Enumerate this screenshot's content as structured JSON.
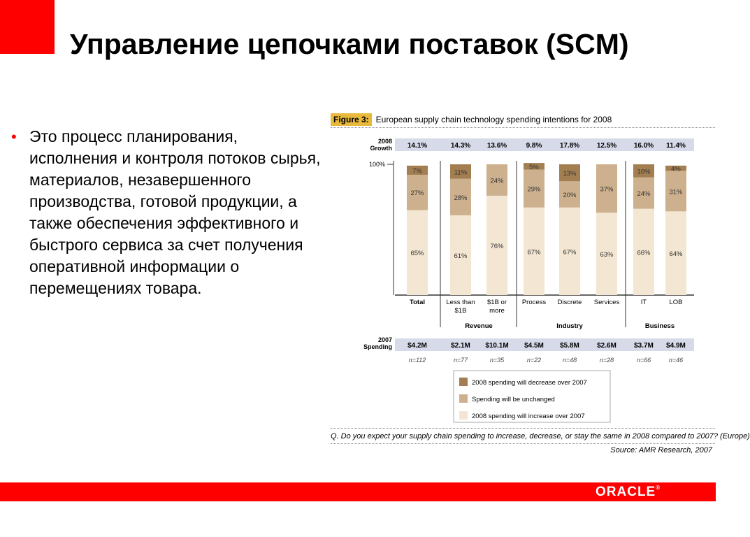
{
  "slide": {
    "title": "Управление цепочками поставок (SCM)",
    "bullet": "Это процесс планирования, исполнения и контроля потоков сырья, материалов, незавершенного производства, готовой продукции, а также обеспечения эффективного и быстрого сервиса за счет получения оперативной информации о перемещениях товара.",
    "logo_text": "ORACLE",
    "logo_mark": "®",
    "colors": {
      "accent": "#ff0000",
      "figure_tag": "#e8b93a",
      "row_band": "#d7dae8"
    }
  },
  "figure": {
    "tag": "Figure 3:",
    "caption": "European supply chain technology spending intentions for 2008",
    "question": "Q. Do you expect your supply chain spending to increase, decrease, or stay the same in 2008 compared to 2007? (Europe)",
    "source": "Source: AMR Research, 2007"
  },
  "chart_data": {
    "type": "bar",
    "stacked": true,
    "percent": true,
    "categories": [
      "Total",
      "Less than $1B",
      "$1B or more",
      "Process",
      "Discrete",
      "Services",
      "IT",
      "LOB"
    ],
    "groups": [
      {
        "name": "Revenue",
        "categories": [
          "Less than $1B",
          "$1B or more"
        ]
      },
      {
        "name": "Industry",
        "categories": [
          "Process",
          "Discrete",
          "Services"
        ]
      },
      {
        "name": "Business",
        "categories": [
          "IT",
          "LOB"
        ]
      }
    ],
    "series": [
      {
        "name": "2008 spending will increase over 2007",
        "color": "#f3e6d2",
        "values": [
          65,
          61,
          76,
          67,
          67,
          63,
          66,
          64
        ]
      },
      {
        "name": "Spending will be unchanged",
        "color": "#cdb08d",
        "values": [
          27,
          28,
          24,
          29,
          20,
          37,
          24,
          31
        ]
      },
      {
        "name": "2008 spending will decrease over 2007",
        "color": "#a37e50",
        "values": [
          7,
          11,
          null,
          5,
          13,
          null,
          10,
          4
        ]
      }
    ],
    "legend_order": [
      "2008 spending will decrease over 2007",
      "Spending will be unchanged",
      "2008 spending will increase over 2007"
    ],
    "y_tick_label": "100%",
    "ylim": [
      0,
      100
    ],
    "growth_2008": {
      "label_line1": "2008",
      "label_line2": "Growth",
      "values": [
        "14.1%",
        "14.3%",
        "13.6%",
        "9.8%",
        "17.8%",
        "12.5%",
        "16.0%",
        "11.4%"
      ]
    },
    "spending_2007": {
      "label_line1": "2007",
      "label_line2": "Spending",
      "values": [
        "$4.2M",
        "$2.1M",
        "$10.1M",
        "$4.5M",
        "$5.8M",
        "$2.6M",
        "$3.7M",
        "$4.9M"
      ]
    },
    "sample_sizes": [
      "n=112",
      "n=77",
      "n=35",
      "n=22",
      "n=48",
      "n=28",
      "n=66",
      "n=46"
    ],
    "category_labels": [
      [
        "Total"
      ],
      [
        "Less than",
        "$1B"
      ],
      [
        "$1B or",
        "more"
      ],
      [
        "Process"
      ],
      [
        "Discrete"
      ],
      [
        "Services"
      ],
      [
        "IT"
      ],
      [
        "LOB"
      ]
    ],
    "legend_placement": "bottom-center",
    "grid": false
  }
}
